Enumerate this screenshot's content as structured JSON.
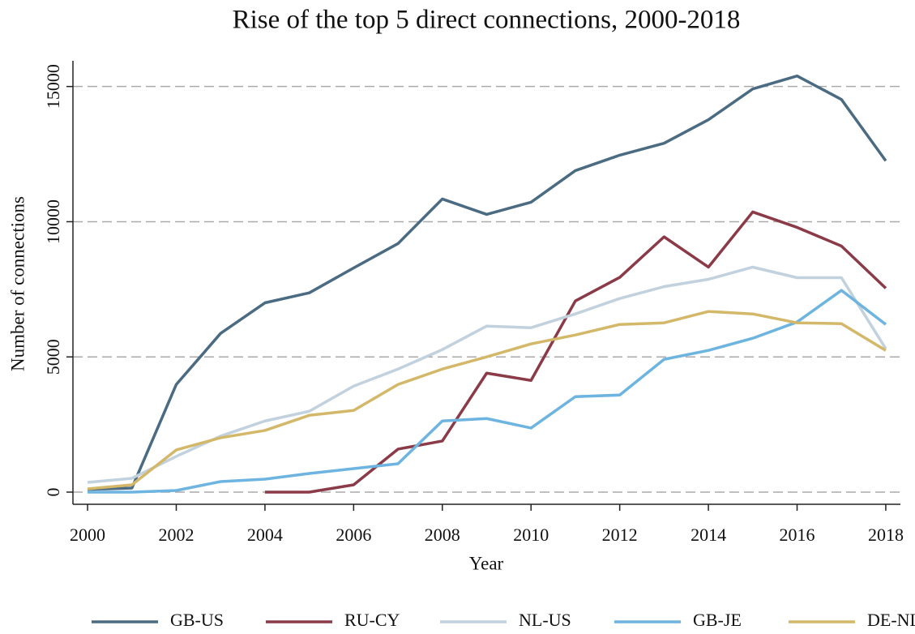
{
  "chart_data": {
    "type": "line",
    "title": "Rise of the top 5 direct connections, 2000-2018",
    "x_label": "Year",
    "y_label": "Number of connections",
    "x": [
      2000,
      2001,
      2002,
      2003,
      2004,
      2005,
      2006,
      2007,
      2008,
      2009,
      2010,
      2011,
      2012,
      2013,
      2014,
      2015,
      2016,
      2017,
      2018
    ],
    "xlim": [
      1999.67,
      2018.33
    ],
    "xticks": [
      2000,
      2002,
      2004,
      2006,
      2008,
      2010,
      2012,
      2014,
      2016,
      2018
    ],
    "ylim": [
      -450,
      15950
    ],
    "yticks": [
      0,
      5000,
      10000,
      15000
    ],
    "grid": true,
    "legend": "bottom",
    "series": [
      {
        "name": "GB-US",
        "color": "#4a6b82",
        "values": [
          100,
          150,
          3980,
          5870,
          7000,
          7370,
          8290,
          9190,
          10840,
          10270,
          10720,
          11890,
          12460,
          12900,
          13770,
          14910,
          15390,
          14520,
          12250
        ]
      },
      {
        "name": "RU-CY",
        "color": "#8b3a48",
        "values": [
          null,
          null,
          null,
          null,
          0,
          0,
          270,
          1590,
          1890,
          4400,
          4130,
          7070,
          7940,
          9440,
          8320,
          10360,
          9790,
          9100,
          7540
        ]
      },
      {
        "name": "NL-US",
        "color": "#c2d1de",
        "values": [
          360,
          510,
          1320,
          2070,
          2630,
          2990,
          3920,
          4550,
          5270,
          6140,
          6080,
          6590,
          7160,
          7600,
          7870,
          8320,
          7930,
          7930,
          5300
        ]
      },
      {
        "name": "GB-JE",
        "color": "#6db4e0",
        "values": [
          0,
          0,
          60,
          390,
          480,
          690,
          870,
          1050,
          2630,
          2720,
          2370,
          3530,
          3590,
          4910,
          5240,
          5690,
          6290,
          7460,
          6200
        ]
      },
      {
        "name": "DE-NL",
        "color": "#d4b86a",
        "values": [
          120,
          270,
          1560,
          2010,
          2280,
          2840,
          3020,
          3980,
          4550,
          5000,
          5480,
          5810,
          6200,
          6260,
          6680,
          6590,
          6260,
          6230,
          5240
        ]
      }
    ]
  }
}
